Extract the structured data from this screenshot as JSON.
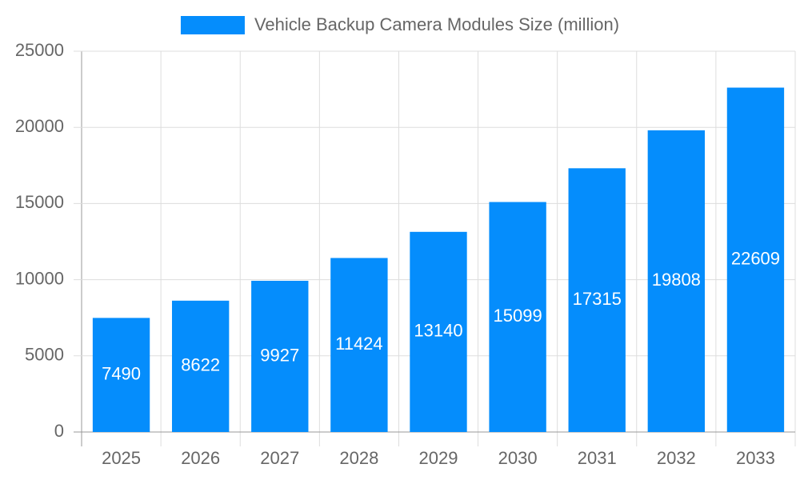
{
  "chart_data": {
    "type": "bar",
    "categories": [
      "2025",
      "2026",
      "2027",
      "2028",
      "2029",
      "2030",
      "2031",
      "2032",
      "2033"
    ],
    "series": [
      {
        "name": "Vehicle Backup Camera Modules Size (million)",
        "color": "#058dfc",
        "values": [
          7490,
          8622,
          9927,
          11424,
          13140,
          15099,
          17315,
          19808,
          22609
        ]
      }
    ],
    "ylim": [
      0,
      25000
    ],
    "yticks": [
      0,
      5000,
      10000,
      15000,
      20000,
      25000
    ],
    "grid": true,
    "legend": "top",
    "data_labels": true
  }
}
